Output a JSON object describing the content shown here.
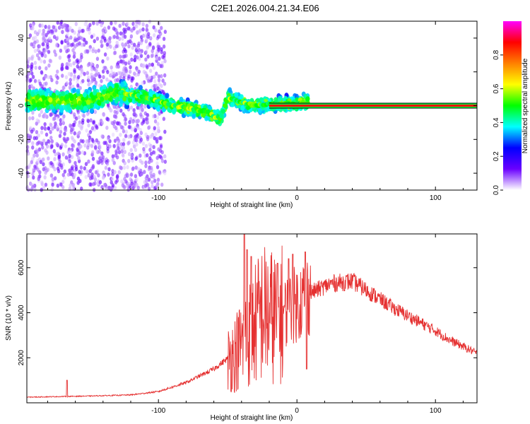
{
  "title": "C2E1.2026.004.21.34.E06",
  "chart_data": [
    {
      "type": "scatter",
      "name": "spectrogram",
      "xlabel": "Height of straight line (km)",
      "ylabel": "Frequency (Hz)",
      "xlim": [
        -195,
        130
      ],
      "ylim": [
        -50,
        50
      ],
      "xticks": [
        -100,
        0,
        100
      ],
      "xtick_labels": [
        "-100",
        "0",
        "100"
      ],
      "yticks": [
        -40,
        -20,
        0,
        20,
        40
      ],
      "ytick_labels": [
        "-40",
        "-20",
        "0",
        "20",
        "40"
      ],
      "colorbar": {
        "label": "Normalized spectral amplitude",
        "range": [
          0,
          1
        ],
        "ticks": [
          0.0,
          0.2,
          0.4,
          0.6,
          0.8
        ],
        "tick_labels": [
          "0.0",
          "0.2",
          "0.4",
          "0.6",
          "0.8"
        ],
        "colormap": [
          "#ffffff",
          "#6a00ff",
          "#0000ff",
          "#00ffff",
          "#00ff00",
          "#ffff00",
          "#ff8000",
          "#ff0000",
          "#ff00ff"
        ]
      },
      "carrier_line": {
        "x_from": -20,
        "x_to": 130,
        "y": 0,
        "amplitude": 1.0
      },
      "ridge": [
        {
          "x": -190,
          "y": 3
        },
        {
          "x": -170,
          "y": 3
        },
        {
          "x": -150,
          "y": 3
        },
        {
          "x": -130,
          "y": 8
        },
        {
          "x": -110,
          "y": 5
        },
        {
          "x": -90,
          "y": 0
        },
        {
          "x": -75,
          "y": -2
        },
        {
          "x": -65,
          "y": -4
        },
        {
          "x": -55,
          "y": -8
        },
        {
          "x": -50,
          "y": 5
        },
        {
          "x": -40,
          "y": 2
        },
        {
          "x": -30,
          "y": 0
        },
        {
          "x": -20,
          "y": 1
        },
        {
          "x": 0,
          "y": 1
        },
        {
          "x": 5,
          "y": 2
        }
      ]
    },
    {
      "type": "line",
      "name": "snr",
      "xlabel": "Height of straight line (km)",
      "ylabel": "SNR (10 * v/v)",
      "xlim": [
        -195,
        130
      ],
      "ylim": [
        0,
        7500
      ],
      "xticks": [
        -100,
        0,
        100
      ],
      "xtick_labels": [
        "-100",
        "0",
        "100"
      ],
      "yticks": [
        2000,
        4000,
        6000
      ],
      "ytick_labels": [
        "2000",
        "4000",
        "6000"
      ],
      "color": "#e53030",
      "envelope": [
        {
          "x": -195,
          "y": 250
        },
        {
          "x": -150,
          "y": 300
        },
        {
          "x": -120,
          "y": 350
        },
        {
          "x": -100,
          "y": 500
        },
        {
          "x": -80,
          "y": 900
        },
        {
          "x": -60,
          "y": 1500
        },
        {
          "x": -45,
          "y": 2200
        },
        {
          "x": -35,
          "y": 3000
        },
        {
          "x": -25,
          "y": 4000
        },
        {
          "x": -15,
          "y": 3800
        },
        {
          "x": -5,
          "y": 4200
        },
        {
          "x": 10,
          "y": 4900
        },
        {
          "x": 25,
          "y": 5300
        },
        {
          "x": 40,
          "y": 5400
        },
        {
          "x": 55,
          "y": 4800
        },
        {
          "x": 70,
          "y": 4200
        },
        {
          "x": 85,
          "y": 3700
        },
        {
          "x": 100,
          "y": 3200
        },
        {
          "x": 110,
          "y": 2800
        },
        {
          "x": 120,
          "y": 2500
        },
        {
          "x": 130,
          "y": 2200
        }
      ],
      "spikes": [
        {
          "x": -166,
          "y": 1000
        },
        {
          "x": -38,
          "y": 7500
        },
        {
          "x": -36,
          "y": 6800
        },
        {
          "x": -33,
          "y": 6500
        },
        {
          "x": -14,
          "y": 6200
        },
        {
          "x": -6,
          "y": 6400
        },
        {
          "x": -3,
          "y": 6600
        },
        {
          "x": 6,
          "y": 6700
        },
        {
          "x": 7,
          "y": 1500
        }
      ]
    }
  ]
}
